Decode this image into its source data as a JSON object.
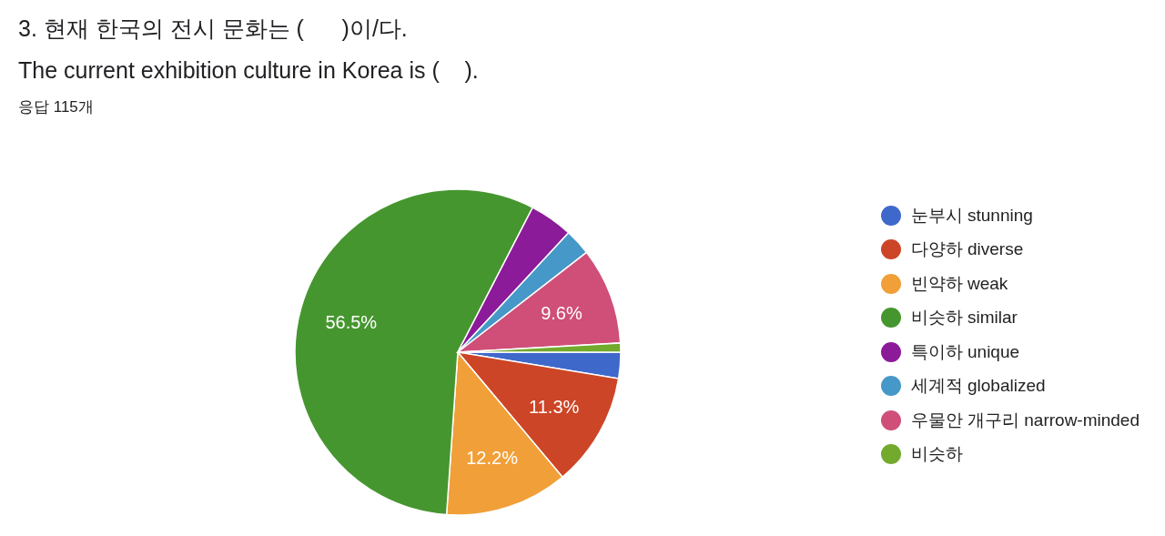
{
  "chart_data": {
    "type": "pie",
    "title": "3. 현재 한국의 전시 문화는 (      )이/다.\nThe current exhibition culture in Korea is (    ).",
    "subtitle": "응답 115개",
    "categories": [
      "눈부시 stunning",
      "다양하 diverse",
      "빈약하 weak",
      "비슷하 similar",
      "특이하 unique",
      "세계적 globalized",
      "우물안 개구리 narrow-minded",
      "비슷하"
    ],
    "values": [
      2.6,
      11.3,
      12.2,
      56.5,
      4.3,
      2.6,
      9.6,
      0.9
    ],
    "colors": [
      "#3f68cb",
      "#cc4526",
      "#f19f38",
      "#46962f",
      "#8b1b98",
      "#4598c7",
      "#cf4f78",
      "#72aa2d"
    ],
    "value_labels": [
      null,
      "11.3%",
      "12.2%",
      "56.5%",
      null,
      null,
      "9.6%",
      null
    ],
    "legend": "right"
  }
}
